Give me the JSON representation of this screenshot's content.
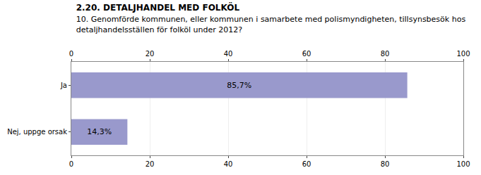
{
  "chart_data": {
    "type": "bar",
    "orientation": "horizontal",
    "title": "2.20. DETALJHANDEL MED FOLKÖL",
    "subtitle": "10. Genomförde kommunen, eller kommunen i samarbete med polismyndigheten, tillsynsbesök hos\ndetaljhandelsställen för folköl under 2012?",
    "categories": [
      "Ja",
      "Nej, uppge orsak"
    ],
    "values": [
      85.7,
      14.3
    ],
    "value_labels": [
      "85,7%",
      "14,3%"
    ],
    "data_labels": true,
    "color": "#9999cc",
    "xlim": [
      0,
      100
    ],
    "xticks": [
      0,
      20,
      40,
      60,
      80,
      100
    ],
    "grid": true
  }
}
